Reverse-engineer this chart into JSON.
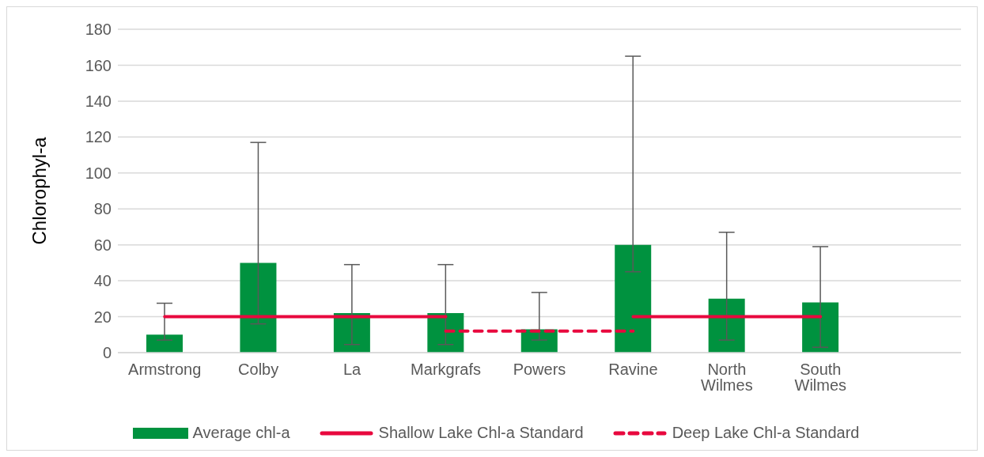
{
  "chart_data": {
    "type": "bar",
    "ylabel": "Chlorophyl-a",
    "categories": [
      "Armstrong",
      "Colby",
      "La",
      "Markgrafs",
      "Powers",
      "Ravine",
      "North Wilmes",
      "South Wilmes",
      null
    ],
    "series": [
      {
        "name": "Average chl-a",
        "color": "#00923f",
        "values": [
          10,
          50,
          22,
          22,
          13,
          60,
          30,
          28,
          null
        ],
        "errors": [
          [
            7,
            27.5
          ],
          [
            16,
            117
          ],
          [
            4.5,
            49
          ],
          [
            4.5,
            49
          ],
          [
            7,
            33.5
          ],
          [
            45,
            165
          ],
          [
            7,
            67
          ],
          [
            3,
            59
          ],
          null
        ]
      },
      {
        "name": "Shallow Lake Chl-a Standard",
        "type": "line",
        "color": "#e8083e",
        "line_style": "solid",
        "values": [
          20,
          20,
          20,
          20,
          null,
          20,
          20,
          20,
          null
        ]
      },
      {
        "name": "Deep Lake Chl-a Standard",
        "type": "line",
        "color": "#e8083e",
        "line_style": "dashed",
        "values": [
          null,
          null,
          null,
          12,
          12,
          12,
          null,
          null,
          null
        ]
      }
    ],
    "ylim": [
      0,
      180
    ],
    "yticks": [
      0,
      20,
      40,
      60,
      80,
      100,
      120,
      140,
      160,
      180
    ],
    "grid": "y",
    "legend": "bottom",
    "marker": "none"
  }
}
